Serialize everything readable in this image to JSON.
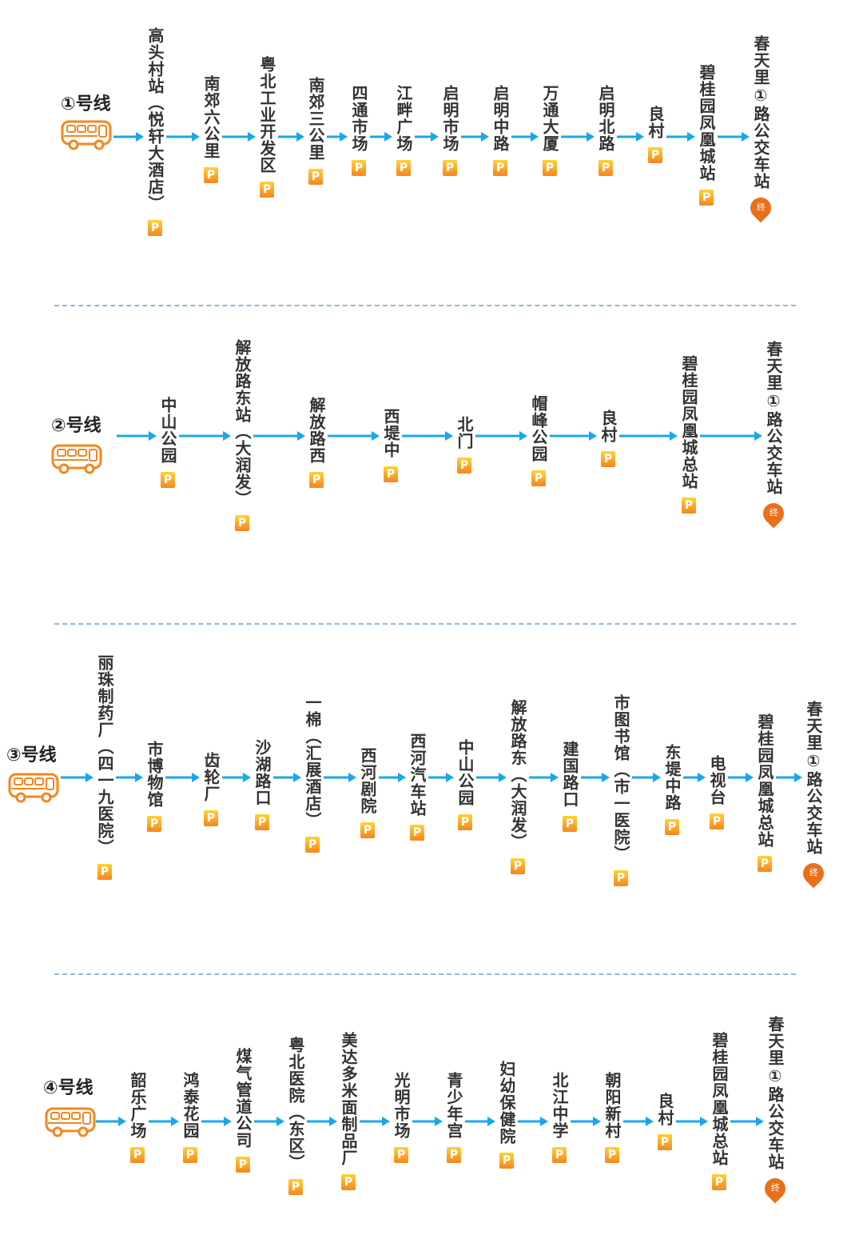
{
  "colors": {
    "arrow": "#1aa7e8",
    "bus": "#f4861e",
    "badge_top": "#ffd23a",
    "badge_bottom": "#f4861e",
    "terminal": "#e8701a",
    "divider": "#8fb8d9"
  },
  "icons": {
    "bus": "bus-icon",
    "parking": "parking-icon",
    "terminal": "terminal-pin-icon"
  },
  "badges": {
    "parking": "P",
    "terminal": "终"
  },
  "routes": [
    {
      "name": "①号线",
      "stops": [
        {
          "name": "高头村站（悦轩大酒店）",
          "badge": "P"
        },
        {
          "name": "南郊六公里",
          "badge": "P"
        },
        {
          "name": "粤北工业开发区",
          "badge": "P"
        },
        {
          "name": "南郊三公里",
          "badge": "P"
        },
        {
          "name": "四通市场",
          "badge": "P"
        },
        {
          "name": "江畔广场",
          "badge": "P"
        },
        {
          "name": "启明市场",
          "badge": "P"
        },
        {
          "name": "启明中路",
          "badge": "P"
        },
        {
          "name": "万通大厦",
          "badge": "P"
        },
        {
          "name": "启明北路",
          "badge": "P"
        },
        {
          "name": "良村",
          "badge": "P"
        },
        {
          "name": "碧桂园凤凰城站",
          "badge": "P"
        },
        {
          "name": "春天里①路公交车站",
          "badge": "终"
        }
      ]
    },
    {
      "name": "②号线",
      "stops": [
        {
          "name": "中山公园",
          "badge": "P"
        },
        {
          "name": "解放路东站（大润发）",
          "badge": "P"
        },
        {
          "name": "解放路西",
          "badge": "P"
        },
        {
          "name": "西堤中",
          "badge": "P"
        },
        {
          "name": "北门",
          "badge": "P"
        },
        {
          "name": "帽峰公园",
          "badge": "P"
        },
        {
          "name": "良村",
          "badge": "P"
        },
        {
          "name": "碧桂园凤凰城总站",
          "badge": "P"
        },
        {
          "name": "春天里①路公交车站",
          "badge": "终"
        }
      ]
    },
    {
      "name": "③号线",
      "stops": [
        {
          "name": "丽珠制药厂（四一九医院）",
          "badge": "P"
        },
        {
          "name": "市博物馆",
          "badge": "P"
        },
        {
          "name": "齿轮厂",
          "badge": "P"
        },
        {
          "name": "沙湖路口",
          "badge": "P"
        },
        {
          "name": "一棉（汇展酒店）",
          "badge": "P"
        },
        {
          "name": "西河剧院",
          "badge": "P"
        },
        {
          "name": "西河汽车站",
          "badge": "P"
        },
        {
          "name": "中山公园",
          "badge": "P"
        },
        {
          "name": "解放路东（大润发）",
          "badge": "P"
        },
        {
          "name": "建国路口",
          "badge": "P"
        },
        {
          "name": "市图书馆（市一医院）",
          "badge": "P"
        },
        {
          "name": "东堤中路",
          "badge": "P"
        },
        {
          "name": "电视台",
          "badge": "P"
        },
        {
          "name": "碧桂园凤凰城总站",
          "badge": "P"
        },
        {
          "name": "春天里①路公交车站",
          "badge": "终"
        }
      ]
    },
    {
      "name": "④号线",
      "stops": [
        {
          "name": "韶乐广场",
          "badge": "P"
        },
        {
          "name": "鸿泰花园",
          "badge": "P"
        },
        {
          "name": "煤气管道公司",
          "badge": "P"
        },
        {
          "name": "粤北医院（东区）",
          "badge": "P"
        },
        {
          "name": "美达多米面制品厂",
          "badge": "P"
        },
        {
          "name": "光明市场",
          "badge": "P"
        },
        {
          "name": "青少年宫",
          "badge": "P"
        },
        {
          "name": "妇幼保健院",
          "badge": "P"
        },
        {
          "name": "北江中学",
          "badge": "P"
        },
        {
          "name": "朝阳新村",
          "badge": "P"
        },
        {
          "name": "良村",
          "badge": "P"
        },
        {
          "name": "碧桂园凤凰城总站",
          "badge": "P"
        },
        {
          "name": "春天里①路公交车站",
          "badge": "终"
        }
      ]
    }
  ]
}
